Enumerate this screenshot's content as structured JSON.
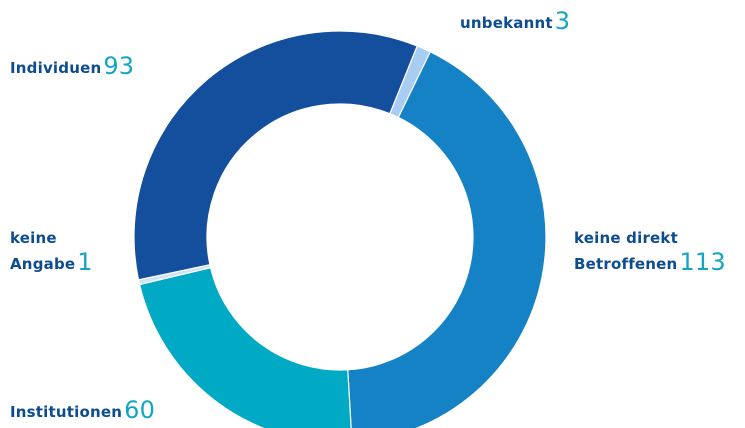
{
  "chart_data": {
    "type": "pie",
    "donut": true,
    "categories": [
      "unbekannt",
      "keine direkt Betroffenen",
      "Institutionen",
      "keine Angabe",
      "Individuen"
    ],
    "values": [
      3,
      113,
      60,
      1,
      93
    ],
    "colors": [
      "#a9cdf2",
      "#1682c6",
      "#00a9c4",
      "#cfe3f5",
      "#134f9c"
    ],
    "legend_placement": "outside-labels",
    "labels": {
      "unbekannt": {
        "text": "unbekannt",
        "value": "3"
      },
      "keine_direkt": {
        "line1": "keine direkt",
        "line2": "Betroffenen",
        "value": "113"
      },
      "institutionen": {
        "text": "Institutionen",
        "value": "60"
      },
      "keine_angabe": {
        "line1": "keine",
        "line2": "Angabe",
        "value": "1"
      },
      "individuen": {
        "text": "Individuen",
        "value": "93"
      }
    },
    "label_color": "#0d4c8f",
    "value_color": "#13a5c2"
  }
}
